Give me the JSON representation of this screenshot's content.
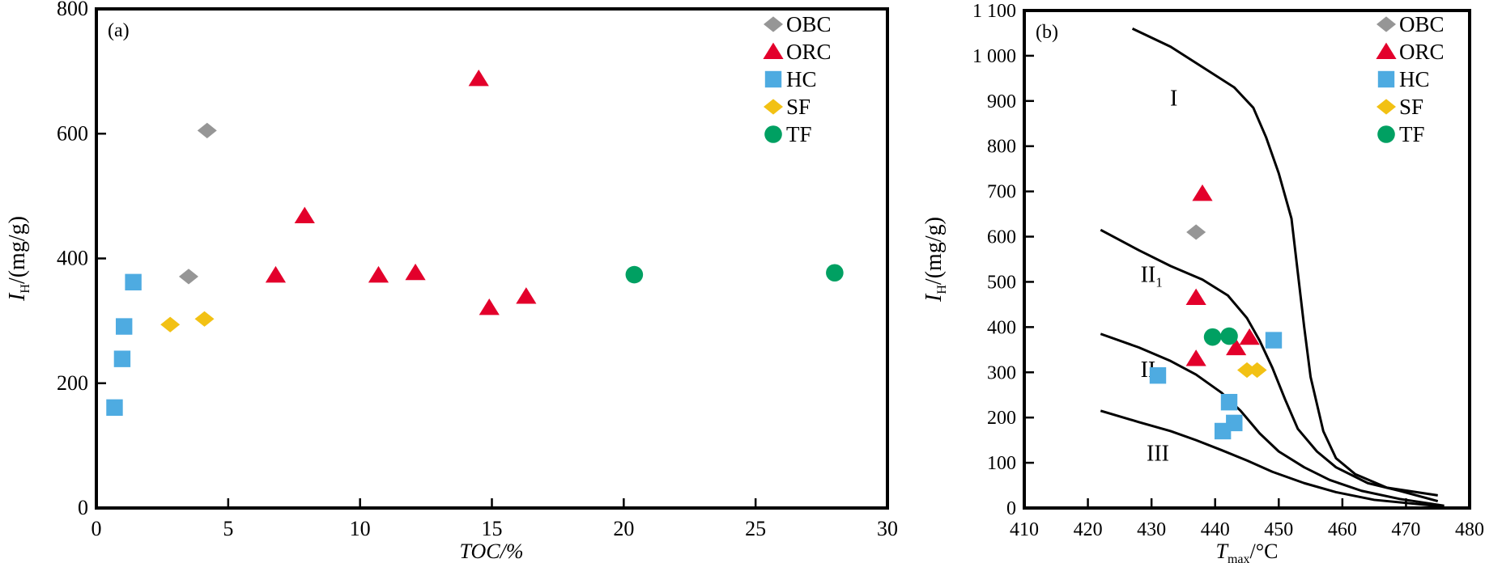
{
  "colors": {
    "OBC": "#969696",
    "ORC": "#e3002b",
    "HC": "#4eabe1",
    "SF": "#f2c114",
    "TF": "#00a062"
  },
  "chart_data": [
    {
      "type": "scatter",
      "panel_label": "(a)",
      "xlabel": "TOC/%",
      "ylabel_main": "I",
      "ylabel_sub": "H",
      "ylabel_rest": "/(mg/g)",
      "xlim": [
        0,
        30
      ],
      "ylim": [
        0,
        800
      ],
      "xticks": [
        0,
        5,
        10,
        15,
        20,
        25,
        30
      ],
      "xtick_labels": [
        "0",
        "5",
        "10",
        "15",
        "20",
        "25",
        "30"
      ],
      "yticks": [
        0,
        200,
        400,
        600,
        800
      ],
      "ytick_labels": [
        "0",
        "200",
        "400",
        "600",
        "800"
      ],
      "legend_position": "top-right",
      "series": [
        {
          "name": "OBC",
          "marker": "diamond",
          "points": [
            [
              4.2,
              605
            ],
            [
              3.5,
              371
            ]
          ]
        },
        {
          "name": "ORC",
          "marker": "triangle",
          "points": [
            [
              14.5,
              688
            ],
            [
              7.9,
              468
            ],
            [
              6.8,
              373
            ],
            [
              10.7,
              373
            ],
            [
              12.1,
              377
            ],
            [
              14.9,
              321
            ],
            [
              16.3,
              339
            ]
          ]
        },
        {
          "name": "HC",
          "marker": "square",
          "points": [
            [
              1.4,
              362
            ],
            [
              1.05,
              291
            ],
            [
              0.98,
              239
            ],
            [
              0.69,
              161
            ]
          ]
        },
        {
          "name": "SF",
          "marker": "diamond",
          "points": [
            [
              2.8,
              294
            ],
            [
              4.1,
              303
            ]
          ]
        },
        {
          "name": "TF",
          "marker": "circle",
          "points": [
            [
              20.4,
              374
            ],
            [
              28.0,
              377
            ]
          ]
        }
      ]
    },
    {
      "type": "scatter",
      "panel_label": "(b)",
      "xlabel_main": "T",
      "xlabel_sub": "max",
      "xlabel_rest": "/°C",
      "ylabel_main": "I",
      "ylabel_sub": "H",
      "ylabel_rest": "/(mg/g)",
      "xlim": [
        410,
        480
      ],
      "ylim": [
        0,
        1100
      ],
      "xticks": [
        410,
        420,
        430,
        440,
        450,
        460,
        470,
        480
      ],
      "xtick_labels": [
        "410",
        "420",
        "430",
        "440",
        "450",
        "460",
        "470",
        "480"
      ],
      "yticks": [
        0,
        100,
        200,
        300,
        400,
        500,
        600,
        700,
        800,
        900,
        1000,
        1100
      ],
      "ytick_labels": [
        "0",
        "100",
        "200",
        "300",
        "400",
        "500",
        "600",
        "700",
        "800",
        "900",
        "1 000",
        "1 100"
      ],
      "legend_position": "top-right",
      "region_labels": [
        {
          "text": "I",
          "sub": "",
          "at": [
            433.5,
            890
          ]
        },
        {
          "text": "II",
          "sub": "1",
          "at": [
            430,
            500
          ]
        },
        {
          "text": "II",
          "sub": "2",
          "at": [
            430,
            290
          ]
        },
        {
          "text": "III",
          "sub": "",
          "at": [
            431,
            105
          ]
        }
      ],
      "boundary_curves": [
        [
          [
            427,
            1060
          ],
          [
            433,
            1020
          ],
          [
            438,
            975
          ],
          [
            443,
            930
          ],
          [
            446,
            885
          ],
          [
            448,
            820
          ],
          [
            450,
            740
          ],
          [
            452,
            640
          ],
          [
            453,
            520
          ],
          [
            454,
            400
          ],
          [
            455,
            290
          ],
          [
            457,
            170
          ],
          [
            459,
            110
          ],
          [
            462,
            75
          ],
          [
            467,
            45
          ],
          [
            475,
            28
          ]
        ],
        [
          [
            422,
            615
          ],
          [
            428,
            570
          ],
          [
            433,
            535
          ],
          [
            438,
            505
          ],
          [
            442,
            470
          ],
          [
            445,
            420
          ],
          [
            447,
            370
          ],
          [
            449,
            310
          ],
          [
            451,
            240
          ],
          [
            453,
            175
          ],
          [
            456,
            125
          ],
          [
            459,
            90
          ],
          [
            464,
            55
          ],
          [
            469,
            38
          ],
          [
            475,
            15
          ]
        ],
        [
          [
            422,
            385
          ],
          [
            428,
            355
          ],
          [
            433,
            325
          ],
          [
            437,
            295
          ],
          [
            441,
            255
          ],
          [
            444,
            215
          ],
          [
            447,
            165
          ],
          [
            450,
            125
          ],
          [
            454,
            90
          ],
          [
            458,
            62
          ],
          [
            463,
            38
          ],
          [
            469,
            20
          ],
          [
            476,
            5
          ]
        ],
        [
          [
            422,
            215
          ],
          [
            428,
            190
          ],
          [
            433,
            170
          ],
          [
            437,
            150
          ],
          [
            441,
            128
          ],
          [
            445,
            105
          ],
          [
            449,
            80
          ],
          [
            454,
            55
          ],
          [
            459,
            35
          ],
          [
            465,
            18
          ],
          [
            476,
            3
          ]
        ]
      ],
      "series": [
        {
          "name": "OBC",
          "marker": "diamond",
          "points": [
            [
              437,
              610
            ]
          ]
        },
        {
          "name": "ORC",
          "marker": "triangle",
          "points": [
            [
              438,
              695
            ],
            [
              437,
              465
            ],
            [
              437,
              330
            ],
            [
              443.3,
              354
            ],
            [
              445.4,
              377
            ]
          ]
        },
        {
          "name": "HC",
          "marker": "square",
          "points": [
            [
              431,
              293
            ],
            [
              449.2,
              371
            ],
            [
              442.2,
              234
            ],
            [
              443,
              188
            ],
            [
              441.2,
              170
            ]
          ]
        },
        {
          "name": "SF",
          "marker": "diamond",
          "points": [
            [
              445,
              305
            ],
            [
              446.6,
              305
            ]
          ]
        },
        {
          "name": "TF",
          "marker": "circle",
          "points": [
            [
              439.6,
              378
            ],
            [
              442.2,
              380
            ]
          ]
        }
      ]
    }
  ]
}
